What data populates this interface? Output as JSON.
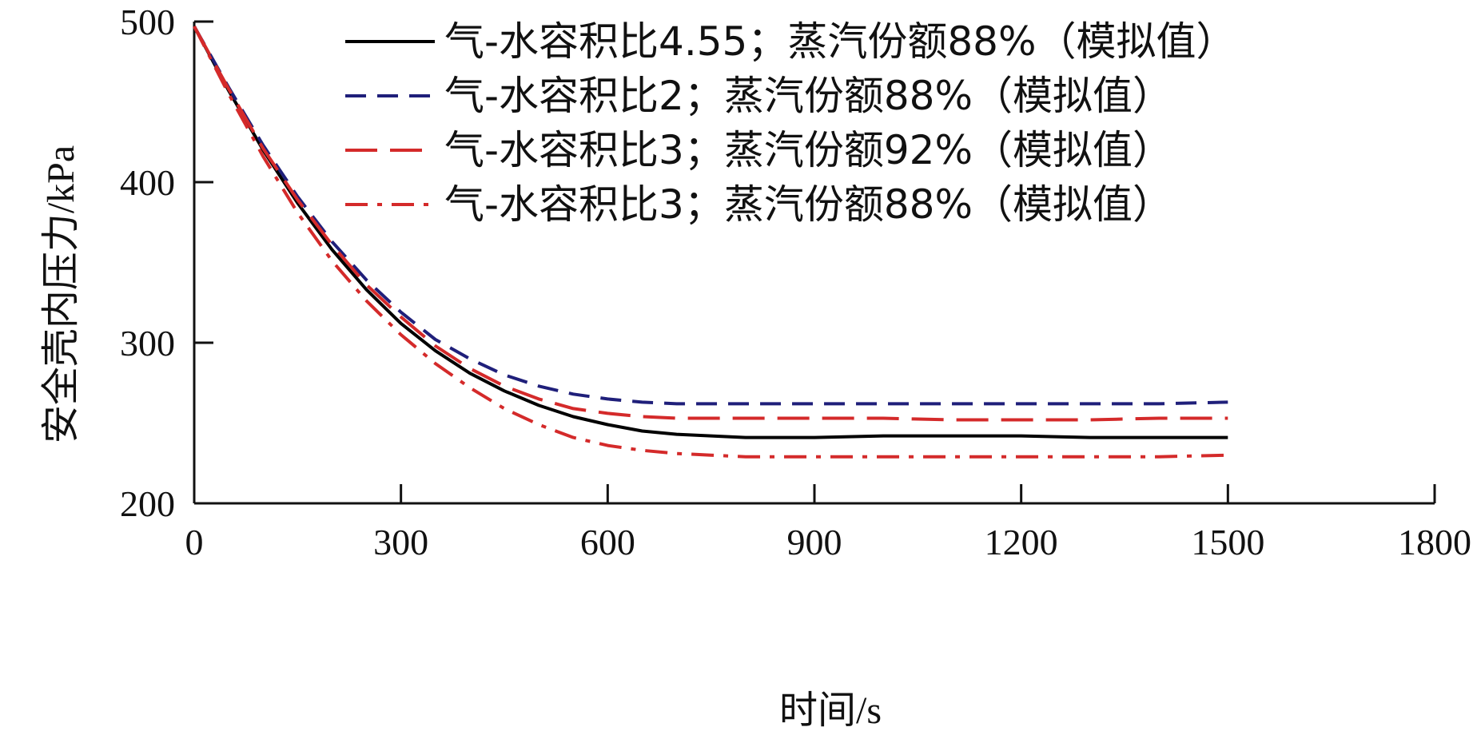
{
  "chart_data": {
    "type": "line",
    "xlabel": "时间/s",
    "ylabel": "安全壳内压力/kPa",
    "xlim": [
      0,
      1800
    ],
    "ylim": [
      200,
      500
    ],
    "xticks": [
      "0",
      "300",
      "600",
      "900",
      "1200",
      "1500",
      "1800"
    ],
    "yticks": [
      "200",
      "300",
      "400",
      "500"
    ],
    "legend_position": "top-right",
    "grid": false,
    "series": [
      {
        "name": "气-水容积比4.55；蒸汽份额88%（模拟值）",
        "color": "#000000",
        "dash": "solid",
        "x": [
          0,
          50,
          100,
          150,
          200,
          250,
          300,
          350,
          400,
          450,
          500,
          550,
          600,
          650,
          700,
          750,
          800,
          900,
          1000,
          1100,
          1200,
          1300,
          1400,
          1500
        ],
        "y": [
          497,
          457,
          420,
          387,
          358,
          333,
          312,
          295,
          281,
          270,
          261,
          254,
          249,
          245,
          243,
          242,
          241,
          241,
          242,
          242,
          242,
          241,
          241,
          241
        ]
      },
      {
        "name": "气-水容积比2；蒸汽份额88%（模拟值）",
        "color": "#1f1f7a",
        "dash": "dashed",
        "x": [
          0,
          50,
          100,
          150,
          200,
          250,
          300,
          350,
          400,
          450,
          500,
          550,
          600,
          650,
          700,
          750,
          800,
          900,
          1000,
          1100,
          1200,
          1300,
          1400,
          1500
        ],
        "y": [
          497,
          459,
          423,
          391,
          363,
          339,
          319,
          302,
          290,
          280,
          273,
          268,
          265,
          263,
          262,
          262,
          262,
          262,
          262,
          262,
          262,
          262,
          262,
          263
        ]
      },
      {
        "name": "气-水容积比3；蒸汽份额92%（模拟值）",
        "color": "#d42a2a",
        "dash": "long-dashed",
        "x": [
          0,
          50,
          100,
          150,
          200,
          250,
          300,
          350,
          400,
          450,
          500,
          550,
          600,
          650,
          700,
          750,
          800,
          900,
          1000,
          1100,
          1200,
          1300,
          1400,
          1500
        ],
        "y": [
          497,
          458,
          421,
          389,
          361,
          336,
          316,
          298,
          284,
          273,
          265,
          259,
          256,
          254,
          253,
          253,
          253,
          253,
          253,
          252,
          252,
          252,
          253,
          253
        ]
      },
      {
        "name": "气-水容积比3；蒸汽份额88%（模拟值）",
        "color": "#d42a2a",
        "dash": "dash-dot",
        "x": [
          0,
          50,
          100,
          150,
          200,
          250,
          300,
          350,
          400,
          450,
          500,
          550,
          600,
          650,
          700,
          750,
          800,
          900,
          1000,
          1100,
          1200,
          1300,
          1400,
          1500
        ],
        "y": [
          497,
          455,
          416,
          381,
          351,
          326,
          305,
          287,
          272,
          259,
          249,
          241,
          236,
          233,
          231,
          230,
          229,
          229,
          229,
          229,
          229,
          229,
          229,
          230
        ]
      }
    ]
  }
}
